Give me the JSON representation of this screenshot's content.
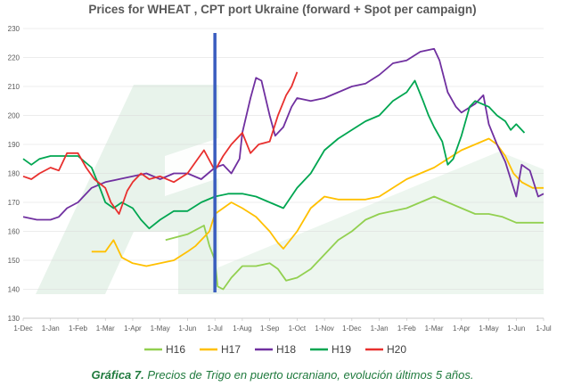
{
  "chart_data": {
    "type": "line",
    "title": "Prices for WHEAT , CPT port Ukraine (forward + Spot per campaign)",
    "xlabel": "",
    "ylabel": "",
    "x_ticks": [
      "1-Dec",
      "1-Jan",
      "1-Feb",
      "1-Mar",
      "1-Apr",
      "1-May",
      "1-Jun",
      "1-Jul",
      "1-Aug",
      "1-Sep",
      "1-Oct",
      "1-Nov",
      "1-Dec",
      "1-Jan",
      "1-Feb",
      "1-Mar",
      "1-Apr",
      "1-May",
      "1-Jun",
      "1-Jul"
    ],
    "ylim": [
      130,
      230
    ],
    "y_ticks": [
      130,
      140,
      150,
      160,
      170,
      180,
      190,
      200,
      210,
      220,
      230
    ],
    "grid": true,
    "legend_position": "bottom",
    "marker_line_month": 7,
    "series": [
      {
        "name": "H16",
        "color": "#92d050",
        "points": [
          [
            5.2,
            157
          ],
          [
            5.6,
            158
          ],
          [
            6.0,
            159
          ],
          [
            6.4,
            161
          ],
          [
            6.6,
            162
          ],
          [
            6.8,
            155
          ],
          [
            7.0,
            150
          ],
          [
            7.1,
            141
          ],
          [
            7.3,
            140
          ],
          [
            7.6,
            144
          ],
          [
            8.0,
            148
          ],
          [
            8.5,
            148
          ],
          [
            9.0,
            149
          ],
          [
            9.3,
            147
          ],
          [
            9.6,
            143
          ],
          [
            10.0,
            144
          ],
          [
            10.5,
            147
          ],
          [
            11.0,
            152
          ],
          [
            11.5,
            157
          ],
          [
            12.0,
            160
          ],
          [
            12.5,
            164
          ],
          [
            13.0,
            166
          ],
          [
            13.5,
            167
          ],
          [
            14.0,
            168
          ],
          [
            14.5,
            170
          ],
          [
            15.0,
            172
          ],
          [
            15.5,
            170
          ],
          [
            16.0,
            168
          ],
          [
            16.5,
            166
          ],
          [
            17.0,
            166
          ],
          [
            17.5,
            165
          ],
          [
            18.0,
            163
          ],
          [
            18.5,
            163
          ],
          [
            19.0,
            163
          ]
        ]
      },
      {
        "name": "H17",
        "color": "#ffc000",
        "points": [
          [
            2.5,
            153
          ],
          [
            3.0,
            153
          ],
          [
            3.3,
            157
          ],
          [
            3.6,
            151
          ],
          [
            4.0,
            149
          ],
          [
            4.5,
            148
          ],
          [
            5.0,
            149
          ],
          [
            5.5,
            150
          ],
          [
            6.0,
            153
          ],
          [
            6.3,
            155
          ],
          [
            6.6,
            158
          ],
          [
            6.8,
            160
          ],
          [
            7.0,
            166
          ],
          [
            7.3,
            168
          ],
          [
            7.6,
            170
          ],
          [
            8.0,
            168
          ],
          [
            8.5,
            165
          ],
          [
            9.0,
            160
          ],
          [
            9.3,
            156
          ],
          [
            9.5,
            154
          ],
          [
            10.0,
            160
          ],
          [
            10.5,
            168
          ],
          [
            11.0,
            172
          ],
          [
            11.5,
            171
          ],
          [
            12.0,
            171
          ],
          [
            12.5,
            171
          ],
          [
            13.0,
            172
          ],
          [
            13.5,
            175
          ],
          [
            14.0,
            178
          ],
          [
            14.5,
            180
          ],
          [
            15.0,
            182
          ],
          [
            15.5,
            185
          ],
          [
            16.0,
            188
          ],
          [
            16.5,
            190
          ],
          [
            17.0,
            192
          ],
          [
            17.3,
            190
          ],
          [
            17.6,
            186
          ],
          [
            17.9,
            180
          ],
          [
            18.2,
            177
          ],
          [
            18.6,
            175
          ],
          [
            19.0,
            175
          ]
        ]
      },
      {
        "name": "H18",
        "color": "#7030a0",
        "points": [
          [
            0,
            165
          ],
          [
            0.5,
            164
          ],
          [
            1.0,
            164
          ],
          [
            1.3,
            165
          ],
          [
            1.6,
            168
          ],
          [
            2.0,
            170
          ],
          [
            2.5,
            175
          ],
          [
            3.0,
            177
          ],
          [
            3.5,
            178
          ],
          [
            4.0,
            179
          ],
          [
            4.5,
            180
          ],
          [
            5.0,
            178
          ],
          [
            5.5,
            180
          ],
          [
            6.0,
            180
          ],
          [
            6.5,
            178
          ],
          [
            7.0,
            182
          ],
          [
            7.3,
            183
          ],
          [
            7.6,
            180
          ],
          [
            7.9,
            185
          ],
          [
            8.0,
            194
          ],
          [
            8.3,
            206
          ],
          [
            8.5,
            213
          ],
          [
            8.7,
            212
          ],
          [
            9.0,
            200
          ],
          [
            9.2,
            193
          ],
          [
            9.5,
            196
          ],
          [
            9.8,
            203
          ],
          [
            10.0,
            206
          ],
          [
            10.5,
            205
          ],
          [
            11.0,
            206
          ],
          [
            11.5,
            208
          ],
          [
            12.0,
            210
          ],
          [
            12.5,
            211
          ],
          [
            13.0,
            214
          ],
          [
            13.5,
            218
          ],
          [
            14.0,
            219
          ],
          [
            14.5,
            222
          ],
          [
            15.0,
            223
          ],
          [
            15.2,
            219
          ],
          [
            15.5,
            208
          ],
          [
            15.8,
            203
          ],
          [
            16.0,
            201
          ],
          [
            16.5,
            204
          ],
          [
            16.8,
            207
          ],
          [
            17.0,
            197
          ],
          [
            17.3,
            190
          ],
          [
            17.6,
            184
          ],
          [
            17.8,
            178
          ],
          [
            18.0,
            172
          ],
          [
            18.2,
            183
          ],
          [
            18.5,
            181
          ],
          [
            18.8,
            172
          ],
          [
            19.0,
            173
          ]
        ]
      },
      {
        "name": "H19",
        "color": "#00a651",
        "points": [
          [
            0,
            185
          ],
          [
            0.3,
            183
          ],
          [
            0.6,
            185
          ],
          [
            1.0,
            186
          ],
          [
            1.5,
            186
          ],
          [
            2.0,
            186
          ],
          [
            2.5,
            182
          ],
          [
            2.8,
            175
          ],
          [
            3.0,
            170
          ],
          [
            3.3,
            168
          ],
          [
            3.6,
            170
          ],
          [
            4.0,
            168
          ],
          [
            4.3,
            164
          ],
          [
            4.6,
            161
          ],
          [
            5.0,
            164
          ],
          [
            5.5,
            167
          ],
          [
            6.0,
            167
          ],
          [
            6.5,
            170
          ],
          [
            7.0,
            172
          ],
          [
            7.5,
            173
          ],
          [
            8.0,
            173
          ],
          [
            8.5,
            172
          ],
          [
            9.0,
            170
          ],
          [
            9.5,
            168
          ],
          [
            10.0,
            175
          ],
          [
            10.5,
            180
          ],
          [
            11.0,
            188
          ],
          [
            11.5,
            192
          ],
          [
            12.0,
            195
          ],
          [
            12.5,
            198
          ],
          [
            13.0,
            200
          ],
          [
            13.5,
            205
          ],
          [
            14.0,
            208
          ],
          [
            14.3,
            212
          ],
          [
            14.6,
            205
          ],
          [
            14.8,
            200
          ],
          [
            15.0,
            196
          ],
          [
            15.3,
            191
          ],
          [
            15.5,
            183
          ],
          [
            15.7,
            185
          ],
          [
            16.0,
            193
          ],
          [
            16.3,
            203
          ],
          [
            16.5,
            205
          ],
          [
            17.0,
            203
          ],
          [
            17.3,
            200
          ],
          [
            17.6,
            198
          ],
          [
            17.8,
            195
          ],
          [
            18.0,
            197
          ],
          [
            18.3,
            194
          ]
        ]
      },
      {
        "name": "H20",
        "color": "#e8302e",
        "points": [
          [
            0,
            179
          ],
          [
            0.3,
            178
          ],
          [
            0.6,
            180
          ],
          [
            1.0,
            182
          ],
          [
            1.3,
            181
          ],
          [
            1.6,
            187
          ],
          [
            2.0,
            187
          ],
          [
            2.3,
            182
          ],
          [
            2.6,
            178
          ],
          [
            3.0,
            175
          ],
          [
            3.2,
            170
          ],
          [
            3.5,
            166
          ],
          [
            3.8,
            174
          ],
          [
            4.0,
            177
          ],
          [
            4.3,
            180
          ],
          [
            4.6,
            178
          ],
          [
            5.0,
            179
          ],
          [
            5.5,
            177
          ],
          [
            6.0,
            180
          ],
          [
            6.3,
            184
          ],
          [
            6.6,
            188
          ],
          [
            7.0,
            181
          ],
          [
            7.3,
            186
          ],
          [
            7.6,
            190
          ],
          [
            8.0,
            194
          ],
          [
            8.3,
            187
          ],
          [
            8.6,
            190
          ],
          [
            9.0,
            191
          ],
          [
            9.3,
            200
          ],
          [
            9.6,
            207
          ],
          [
            9.8,
            210
          ],
          [
            10.0,
            215
          ]
        ]
      }
    ]
  },
  "caption": {
    "lead": "Gráfica 7.",
    "text": " Precios de Trigo en puerto ucraniano, evolución últimos 5 años."
  },
  "colors": {
    "marker_line": "#3a5dbf",
    "watermark": "#d6eadb",
    "axis_text": "#595959",
    "grid": "#d9d9d9"
  }
}
